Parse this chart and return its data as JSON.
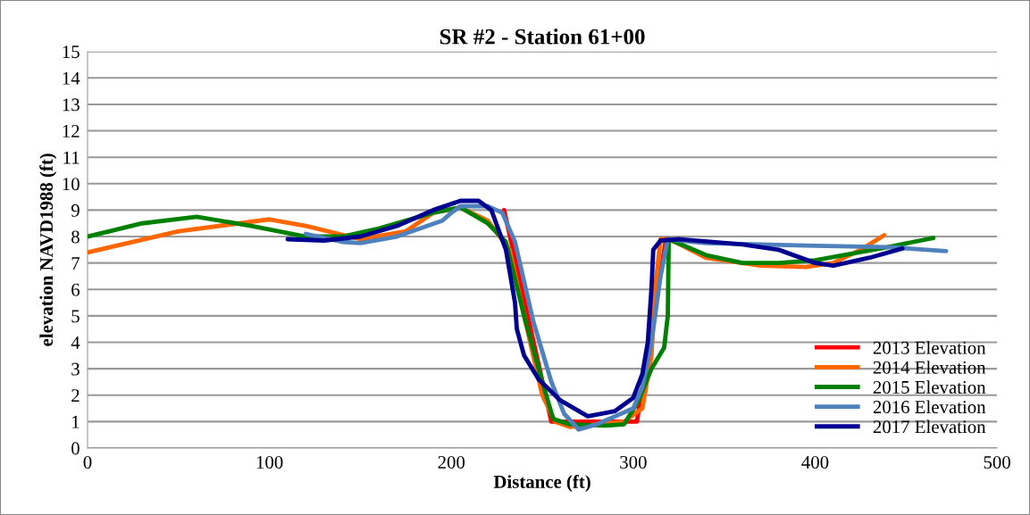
{
  "chart_data": {
    "type": "line",
    "title": "SR #2 - Station 61+00",
    "xlabel": "Distance (ft)",
    "ylabel": "elevation NAVD1988 (ft)",
    "xlim": [
      0,
      500
    ],
    "xticks": [
      0,
      100,
      200,
      300,
      400,
      500
    ],
    "ylim": [
      0,
      15
    ],
    "yticks": [
      0,
      1,
      2,
      3,
      4,
      5,
      6,
      7,
      8,
      9,
      10,
      11,
      12,
      13,
      14,
      15
    ],
    "grid": "y",
    "legend": "bottom right",
    "marker": "none",
    "line_style": "solid",
    "series": [
      {
        "name": "2013 Elevation",
        "color": "#ff0000",
        "x": [
          229,
          255,
          302,
          318
        ],
        "values": [
          9.0,
          1.0,
          1.0,
          7.9
        ]
      },
      {
        "name": "2014 Elevation",
        "color": "#ff6600",
        "x": [
          0,
          50,
          100,
          120,
          150,
          175,
          190,
          205,
          220,
          232,
          240,
          250,
          257,
          265,
          280,
          295,
          305,
          310,
          312,
          315,
          320,
          340,
          370,
          395,
          410,
          425,
          438
        ],
        "values": [
          7.4,
          8.2,
          8.65,
          8.4,
          7.9,
          8.2,
          8.9,
          9.1,
          8.6,
          7.5,
          5.0,
          2.0,
          1.0,
          0.8,
          0.9,
          1.0,
          1.5,
          3.5,
          6.0,
          7.9,
          7.9,
          7.2,
          6.9,
          6.85,
          7.0,
          7.5,
          8.05
        ]
      },
      {
        "name": "2015 Elevation",
        "color": "#008000",
        "x": [
          0,
          30,
          60,
          90,
          120,
          140,
          160,
          190,
          205,
          220,
          230,
          240,
          250,
          256,
          265,
          285,
          295,
          303,
          310,
          317,
          319,
          319.5,
          340,
          360,
          380,
          400,
          440,
          465
        ],
        "values": [
          8.0,
          8.5,
          8.75,
          8.4,
          8.0,
          8.0,
          8.3,
          8.9,
          9.1,
          8.5,
          7.8,
          5.0,
          2.5,
          1.1,
          0.9,
          0.85,
          0.9,
          1.8,
          3.0,
          3.8,
          5.0,
          7.9,
          7.3,
          7.0,
          7.0,
          7.1,
          7.6,
          7.95
        ]
      },
      {
        "name": "2016 Elevation",
        "color": "#4f81bd",
        "x": [
          120,
          140,
          150,
          170,
          195,
          200,
          205,
          220,
          228,
          235,
          245,
          255,
          262,
          270,
          280,
          290,
          300,
          305,
          310,
          315,
          319,
          340,
          400,
          440,
          472
        ],
        "values": [
          8.1,
          7.8,
          7.75,
          8.0,
          8.6,
          8.9,
          9.15,
          9.15,
          8.9,
          7.8,
          4.8,
          2.5,
          1.3,
          0.7,
          0.9,
          1.2,
          1.5,
          2.3,
          4.0,
          6.5,
          7.9,
          7.75,
          7.65,
          7.6,
          7.45
        ]
      },
      {
        "name": "2017 Elevation",
        "color": "#000090",
        "x": [
          110,
          130,
          150,
          170,
          190,
          205,
          215,
          222,
          230,
          235,
          236,
          240,
          248,
          260,
          275,
          290,
          300,
          305,
          308,
          310,
          311,
          315,
          325,
          360,
          380,
          400,
          410,
          430,
          448
        ],
        "values": [
          7.9,
          7.85,
          8.0,
          8.4,
          9.0,
          9.35,
          9.35,
          9.0,
          7.5,
          5.5,
          4.5,
          3.5,
          2.6,
          1.8,
          1.2,
          1.4,
          1.9,
          2.8,
          4.0,
          6.0,
          7.5,
          7.85,
          7.9,
          7.7,
          7.5,
          7.0,
          6.9,
          7.2,
          7.55
        ]
      }
    ]
  }
}
